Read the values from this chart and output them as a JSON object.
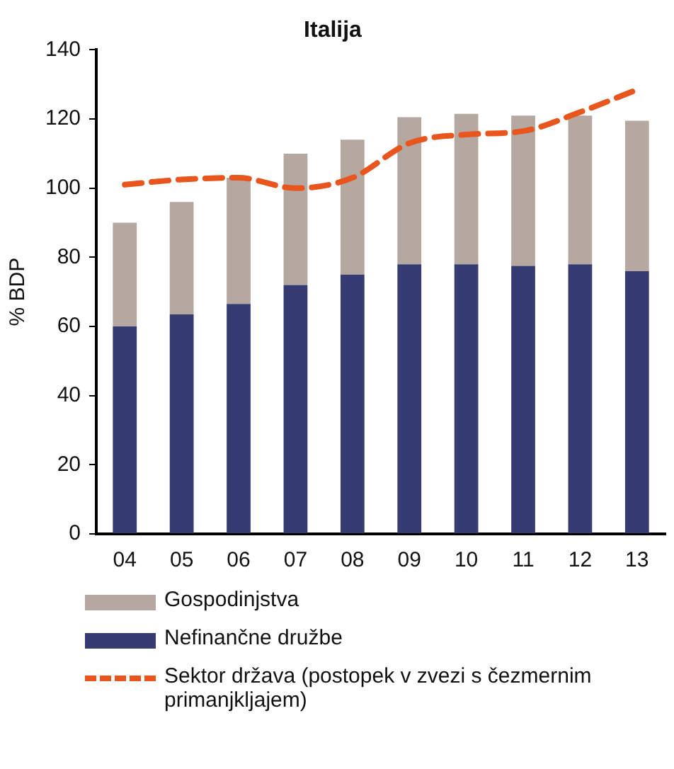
{
  "chart_data": {
    "type": "bar",
    "title": "Italija",
    "ylabel": "% BDP",
    "stacked": true,
    "categories": [
      "04",
      "05",
      "06",
      "07",
      "08",
      "09",
      "10",
      "11",
      "12",
      "13"
    ],
    "series": [
      {
        "name": "Nefinančne družbe",
        "color": "#363c72",
        "values": [
          60,
          63.5,
          66.5,
          72,
          75,
          78,
          78,
          77.5,
          78,
          76
        ]
      },
      {
        "name": "Gospodinjstva",
        "color": "#b5a8a0",
        "values": [
          30,
          32.5,
          36.5,
          38,
          39,
          42.5,
          43.5,
          43.5,
          43,
          43.5
        ]
      },
      {
        "name": "Sektor država (postopek v zvezi s čezmernim primanjkljajem)",
        "type": "line",
        "color": "#e8561e",
        "line_style": "dashed",
        "marker": "none",
        "values": [
          101,
          102.5,
          103,
          100,
          103,
          113,
          115.5,
          116.5,
          122,
          128.5
        ]
      }
    ],
    "ylim": [
      0,
      140
    ],
    "yticks": [
      0,
      20,
      40,
      60,
      80,
      100,
      120,
      140
    ],
    "grid": false,
    "legend": "bottom"
  }
}
